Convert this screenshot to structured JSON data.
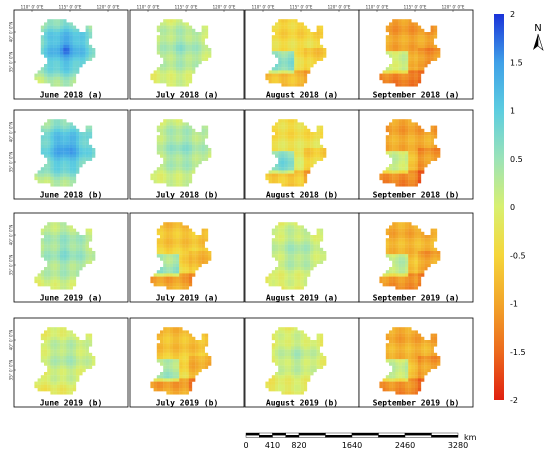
{
  "panels": [
    {
      "label": "June 2018 (a)",
      "mode": 1.05
    },
    {
      "label": "July 2018 (a)",
      "mode": 0.3
    },
    {
      "label": "August 2018 (a)",
      "mode": -0.35
    },
    {
      "label": "September 2018 (a)",
      "mode": -0.9
    },
    {
      "label": "June 2018 (b)",
      "mode": 1.0
    },
    {
      "label": "July 2018 (b)",
      "mode": 0.35
    },
    {
      "label": "August 2018 (b)",
      "mode": -0.25
    },
    {
      "label": "September 2018 (b)",
      "mode": -0.85
    },
    {
      "label": "June 2019 (a)",
      "mode": 0.4
    },
    {
      "label": "July 2019 (a)",
      "mode": -0.55
    },
    {
      "label": "August 2019 (a)",
      "mode": 0.2
    },
    {
      "label": "September 2019 (a)",
      "mode": -0.75
    },
    {
      "label": "June 2019 (b)",
      "mode": 0.15
    },
    {
      "label": "July 2019 (b)",
      "mode": -0.6
    },
    {
      "label": "August 2019 (b)",
      "mode": 0.1
    },
    {
      "label": "September 2019 (b)",
      "mode": -0.8
    }
  ],
  "longitude_ticks": [
    "110° 0' 0\"E",
    "115° 0' 0\"E",
    "120° 0' 0\"E"
  ],
  "latitude_ticks": [
    "40° 0' 0\"N",
    "35° 0' 0\"N"
  ],
  "colorbar": {
    "min": -2,
    "max": 2,
    "labels": [
      "2",
      "1.5",
      "1",
      "0.5",
      "0",
      "-0.5",
      "-1",
      "-1.5",
      "-2"
    ],
    "stops": [
      "#1a33d9",
      "#3fa0e8",
      "#5ccde0",
      "#9be3b8",
      "#d8f070",
      "#f5d63a",
      "#f2a52a",
      "#ec6a1d",
      "#e02010"
    ]
  },
  "north_arrow": {
    "label": "N"
  },
  "scale_bar": {
    "unit": "km",
    "labels": [
      "0",
      "410",
      "820",
      "1640",
      "2460",
      "3280"
    ],
    "values": [
      0,
      410,
      820,
      1640,
      2460,
      3280
    ]
  }
}
